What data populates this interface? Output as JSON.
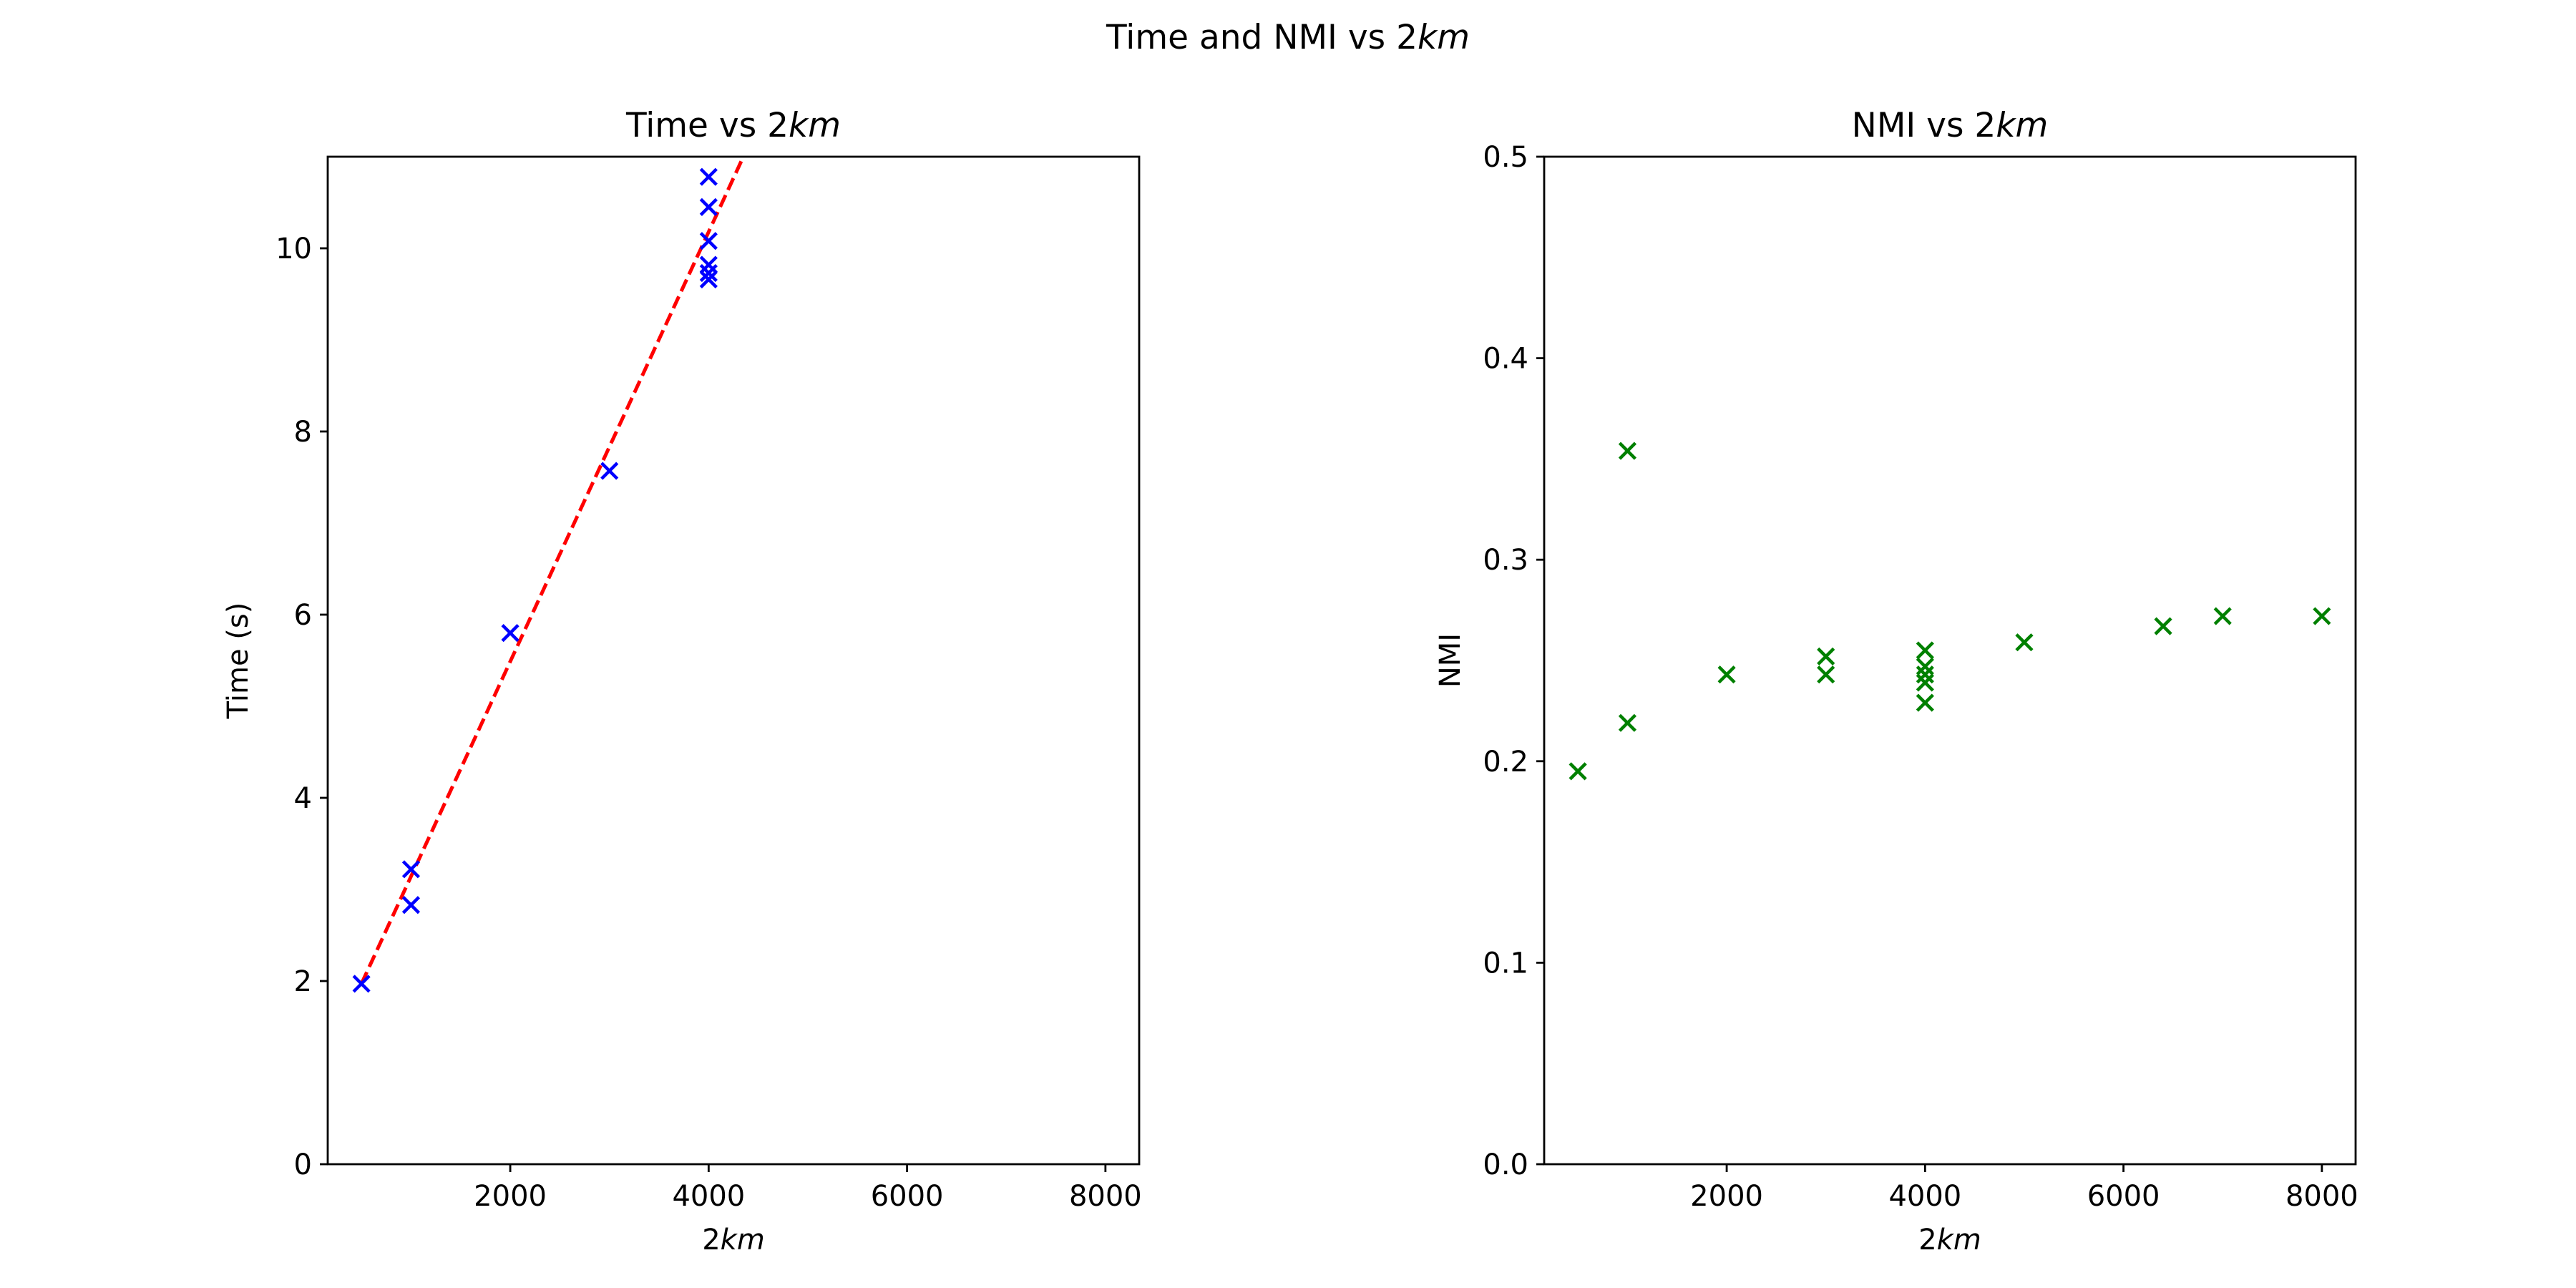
{
  "figure": {
    "suptitle": "Time and NMI vs 2km",
    "suptitle_prefix": "Time and NMI vs 2",
    "suptitle_italic": "km"
  },
  "chart_data": [
    {
      "type": "scatter",
      "title": "Time vs 2km",
      "title_prefix": "Time vs 2",
      "title_italic": "km",
      "xlabel": "2km",
      "xlabel_prefix": "2",
      "xlabel_italic": "km",
      "ylabel": "Time (s)",
      "xlim": [
        160,
        8340
      ],
      "ylim": [
        0,
        11
      ],
      "xticks": [
        2000,
        4000,
        6000,
        8000
      ],
      "yticks": [
        0,
        2,
        4,
        6,
        8,
        10
      ],
      "grid": false,
      "marker": "x",
      "color": "#0000ff",
      "points": [
        {
          "x": 500,
          "y": 1.97
        },
        {
          "x": 1000,
          "y": 3.22
        },
        {
          "x": 1000,
          "y": 2.83
        },
        {
          "x": 2000,
          "y": 5.8
        },
        {
          "x": 3000,
          "y": 7.57
        },
        {
          "x": 4000,
          "y": 10.78
        },
        {
          "x": 4000,
          "y": 10.45
        },
        {
          "x": 4000,
          "y": 10.08
        },
        {
          "x": 4000,
          "y": 9.82
        },
        {
          "x": 4000,
          "y": 9.73
        },
        {
          "x": 4000,
          "y": 9.66
        }
      ],
      "fit_line": {
        "color": "#ff0000",
        "style": "dashed",
        "x": [
          500,
          4350
        ],
        "y": [
          1.97,
          11.0
        ]
      }
    },
    {
      "type": "scatter",
      "title": "NMI vs 2km",
      "title_prefix": "NMI vs 2",
      "title_italic": "km",
      "xlabel": "2km",
      "xlabel_prefix": "2",
      "xlabel_italic": "km",
      "ylabel": "NMI",
      "xlim": [
        160,
        8340
      ],
      "ylim": [
        0.0,
        0.5
      ],
      "xticks": [
        2000,
        4000,
        6000,
        8000
      ],
      "yticks": [
        0.0,
        0.1,
        0.2,
        0.3,
        0.4,
        0.5
      ],
      "ytick_labels": [
        "0.0",
        "0.1",
        "0.2",
        "0.3",
        "0.4",
        "0.5"
      ],
      "grid": false,
      "marker": "x",
      "color": "#008000",
      "points": [
        {
          "x": 500,
          "y": 0.195
        },
        {
          "x": 1000,
          "y": 0.354
        },
        {
          "x": 1000,
          "y": 0.219
        },
        {
          "x": 2000,
          "y": 0.243
        },
        {
          "x": 3000,
          "y": 0.252
        },
        {
          "x": 3000,
          "y": 0.243
        },
        {
          "x": 4000,
          "y": 0.255
        },
        {
          "x": 4000,
          "y": 0.247
        },
        {
          "x": 4000,
          "y": 0.243
        },
        {
          "x": 4000,
          "y": 0.239
        },
        {
          "x": 4000,
          "y": 0.229
        },
        {
          "x": 5000,
          "y": 0.259
        },
        {
          "x": 6400,
          "y": 0.267
        },
        {
          "x": 7000,
          "y": 0.272
        },
        {
          "x": 8000,
          "y": 0.272
        }
      ]
    }
  ]
}
